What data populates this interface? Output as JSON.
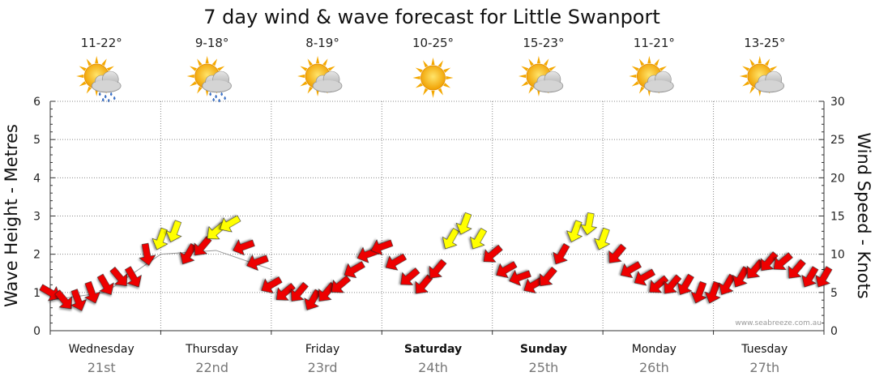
{
  "chart_data": {
    "type": "line",
    "title": "7 day wind & wave forecast for Little Swanport",
    "ylabel_left": "Wave Height - Metres",
    "ylabel_right": "Wind Speed - Knots",
    "ylim_left": [
      0,
      6
    ],
    "ylim_right": [
      0,
      30
    ],
    "left_ticks": [
      "0",
      "1",
      "2",
      "3",
      "4",
      "5",
      "6"
    ],
    "right_ticks": [
      "0",
      "5",
      "10",
      "15",
      "20",
      "25",
      "30"
    ],
    "credit": "www.seabreeze.com.au",
    "days": [
      {
        "name": "Wednesday",
        "date": "21st",
        "bold": false,
        "temp": "11-22°",
        "weather": "sun-cloud-rain-icon"
      },
      {
        "name": "Thursday",
        "date": "22nd",
        "bold": false,
        "temp": "9-18°",
        "weather": "sun-cloud-rain-icon"
      },
      {
        "name": "Friday",
        "date": "23rd",
        "bold": false,
        "temp": "8-19°",
        "weather": "sun-cloud-icon"
      },
      {
        "name": "Saturday",
        "date": "24th",
        "bold": true,
        "temp": "10-25°",
        "weather": "sun-icon"
      },
      {
        "name": "Sunday",
        "date": "25th",
        "bold": true,
        "temp": "15-23°",
        "weather": "sun-cloud-icon"
      },
      {
        "name": "Monday",
        "date": "26th",
        "bold": false,
        "temp": "11-21°",
        "weather": "sun-cloud-icon"
      },
      {
        "name": "Tuesday",
        "date": "27th",
        "bold": false,
        "temp": "13-25°",
        "weather": "sun-cloud-icon"
      }
    ],
    "series": [
      {
        "name": "Wave height (m)",
        "x_hours": [
          0,
          12,
          24,
          36,
          48
        ],
        "values": [
          0.8,
          1.0,
          2.0,
          2.1,
          1.6
        ]
      },
      {
        "name": "Wind speed (knots)",
        "color_red": "#ee0000",
        "color_yellow": "#ffff00",
        "yellow_threshold_knots": 12,
        "x_hours": [
          0,
          3,
          6,
          9,
          12,
          15,
          18,
          21,
          24,
          27,
          30,
          33,
          36,
          39,
          42,
          45,
          48,
          51,
          54,
          57,
          60,
          63,
          66,
          69,
          72,
          75,
          78,
          81,
          84,
          87,
          90,
          93,
          96,
          99,
          102,
          105,
          108,
          111,
          114,
          117,
          120,
          123,
          126,
          129,
          132,
          135,
          138,
          141,
          144,
          147,
          150,
          153,
          156,
          159,
          162,
          165,
          168
        ],
        "values": [
          5,
          4,
          4,
          5,
          6,
          7,
          7,
          10,
          12,
          13,
          10,
          11,
          13,
          14,
          11,
          9,
          6,
          5,
          5,
          4,
          5,
          6,
          8,
          10,
          11,
          9,
          7,
          6,
          8,
          12,
          14,
          12,
          10,
          8,
          7,
          6,
          7,
          10,
          13,
          14,
          12,
          10,
          8,
          7,
          6,
          6,
          6,
          5,
          5,
          6,
          7,
          8,
          9,
          9,
          8,
          7,
          7
        ],
        "direction_deg": [
          120,
          140,
          160,
          160,
          150,
          140,
          150,
          170,
          200,
          200,
          210,
          220,
          230,
          240,
          250,
          250,
          240,
          230,
          220,
          210,
          220,
          230,
          240,
          250,
          250,
          240,
          230,
          220,
          220,
          210,
          200,
          210,
          230,
          240,
          250,
          240,
          220,
          210,
          200,
          190,
          200,
          220,
          240,
          240,
          230,
          220,
          210,
          200,
          200,
          210,
          210,
          220,
          220,
          230,
          220,
          210,
          210
        ]
      }
    ]
  }
}
